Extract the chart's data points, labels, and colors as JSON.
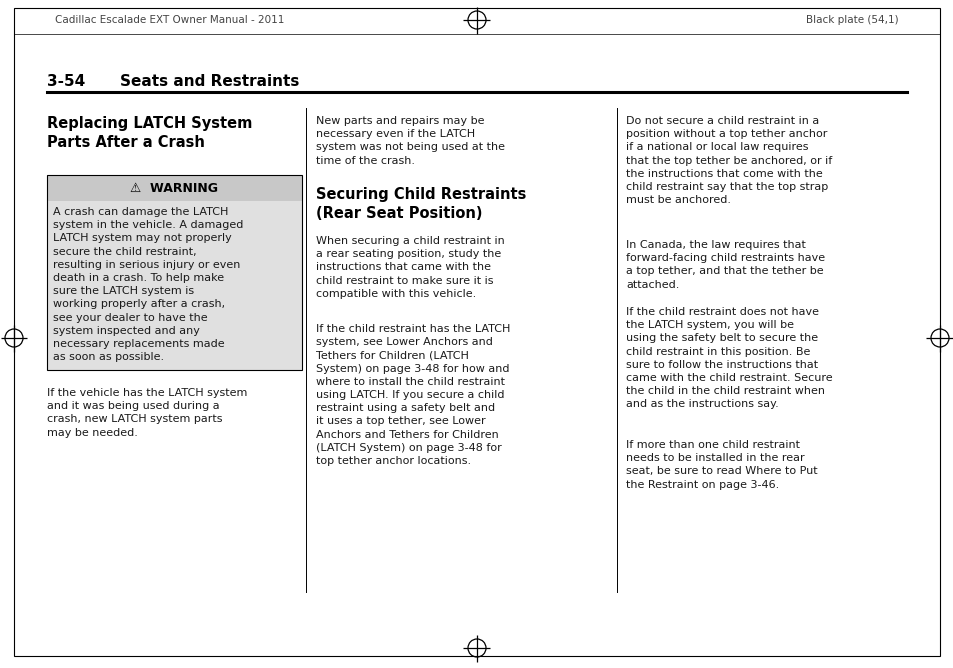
{
  "page_bg": "#ffffff",
  "header_left": "Cadillac Escalade EXT Owner Manual - 2011",
  "header_right": "Black plate (54,1)",
  "section_number": "3-54",
  "section_title": "Seats and Restraints",
  "col1_heading": "Replacing LATCH System\nParts After a Crash",
  "warning_title": "⚠  WARNING",
  "warning_box_bg": "#e0e0e0",
  "warning_header_bg": "#c8c8c8",
  "warning_text": "A crash can damage the LATCH\nsystem in the vehicle. A damaged\nLATCH system may not properly\nsecure the child restraint,\nresulting in serious injury or even\ndeath in a crash. To help make\nsure the LATCH system is\nworking properly after a crash,\nsee your dealer to have the\nsystem inspected and any\nnecessary replacements made\nas soon as possible.",
  "col1_body": "If the vehicle has the LATCH system\nand it was being used during a\ncrash, new LATCH system parts\nmay be needed.",
  "col2_heading": "Securing Child Restraints\n(Rear Seat Position)",
  "col2_para1": "New parts and repairs may be\nnecessary even if the LATCH\nsystem was not being used at the\ntime of the crash.",
  "col2_para2": "When securing a child restraint in\na rear seating position, study the\ninstructions that came with the\nchild restraint to make sure it is\ncompatible with this vehicle.",
  "col2_para3": "If the child restraint has the LATCH\nsystem, see Lower Anchors and\nTethers for Children (LATCH\nSystem) on page 3-48 for how and\nwhere to install the child restraint\nusing LATCH. If you secure a child\nrestraint using a safety belt and\nit uses a top tether, see Lower\nAnchors and Tethers for Children\n(LATCH System) on page 3-48 for\ntop tether anchor locations.",
  "col3_para1": "Do not secure a child restraint in a\nposition without a top tether anchor\nif a national or local law requires\nthat the top tether be anchored, or if\nthe instructions that come with the\nchild restraint say that the top strap\nmust be anchored.",
  "col3_para2": "In Canada, the law requires that\nforward-facing child restraints have\na top tether, and that the tether be\nattached.",
  "col3_para3": "If the child restraint does not have\nthe LATCH system, you will be\nusing the safety belt to secure the\nchild restraint in this position. Be\nsure to follow the instructions that\ncame with the child restraint. Secure\nthe child in the child restraint when\nand as the instructions say.",
  "col3_para4": "If more than one child restraint\nneeds to be installed in the rear\nseat, be sure to read Where to Put\nthe Restraint on page 3-46.",
  "text_color": "#1a1a1a",
  "font_size_body": 8.0,
  "font_size_heading": 10.5,
  "font_size_header": 7.5,
  "font_size_section": 11.0,
  "font_size_warning_title": 9.0
}
